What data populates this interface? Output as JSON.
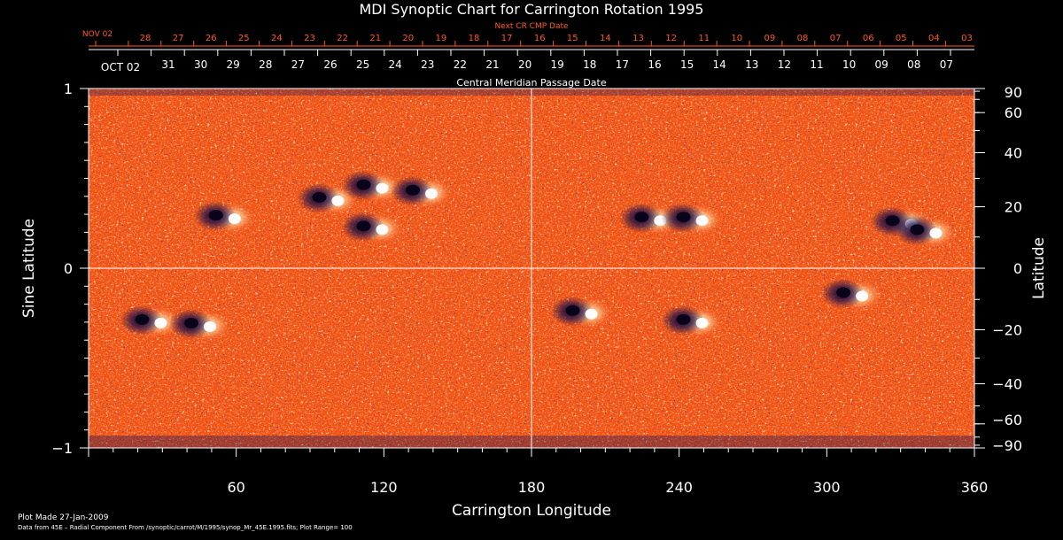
{
  "chart_data": {
    "type": "heatmap",
    "title": "MDI Synoptic Chart for Carrington Rotation 1995",
    "xlabel": "Carrington Longitude",
    "ylabel_left": "Sine Latitude",
    "ylabel_right": "Latitude",
    "xlim": [
      0,
      360
    ],
    "ylim": [
      -1,
      1
    ],
    "x_ticks": [
      60,
      120,
      180,
      240,
      300,
      360
    ],
    "y_left_ticks": [
      {
        "value": 1,
        "label": "1"
      },
      {
        "value": 0,
        "label": "0"
      },
      {
        "value": -1,
        "label": "−1"
      }
    ],
    "y_right_ticks": [
      {
        "lat": 90,
        "label": "90"
      },
      {
        "lat": 60,
        "label": "60"
      },
      {
        "lat": 40,
        "label": "40"
      },
      {
        "lat": 20,
        "label": "20"
      },
      {
        "lat": 0,
        "label": "0"
      },
      {
        "lat": -20,
        "label": "−20"
      },
      {
        "lat": -40,
        "label": "−40"
      },
      {
        "lat": -60,
        "label": "−60"
      },
      {
        "lat": -90,
        "label": "−90"
      }
    ],
    "top_axis_label": "Central Meridian Passage Date",
    "top_axis_start_label": "OCT 02",
    "top_axis_dates": [
      "31",
      "30",
      "29",
      "28",
      "27",
      "26",
      "25",
      "24",
      "23",
      "22",
      "21",
      "20",
      "19",
      "18",
      "17",
      "16",
      "15",
      "14",
      "13",
      "12",
      "11",
      "10",
      "09",
      "08",
      "07"
    ],
    "next_cr_label": "Next CR CMP Date",
    "next_cr_start_label": "NOV 02",
    "next_cr_dates": [
      "28",
      "27",
      "26",
      "25",
      "24",
      "23",
      "22",
      "21",
      "20",
      "19",
      "18",
      "17",
      "16",
      "15",
      "14",
      "13",
      "12",
      "11",
      "10",
      "09",
      "08",
      "07",
      "06",
      "05",
      "04",
      "03"
    ],
    "gridlines": {
      "longitude": [
        180
      ],
      "sine_latitude": [
        0
      ]
    },
    "active_regions": [
      {
        "lon": 25,
        "sinlat": -0.3
      },
      {
        "lon": 45,
        "sinlat": -0.32
      },
      {
        "lon": 55,
        "sinlat": 0.28
      },
      {
        "lon": 97,
        "sinlat": 0.38
      },
      {
        "lon": 115,
        "sinlat": 0.45
      },
      {
        "lon": 135,
        "sinlat": 0.42
      },
      {
        "lon": 115,
        "sinlat": 0.22
      },
      {
        "lon": 200,
        "sinlat": -0.25
      },
      {
        "lon": 228,
        "sinlat": 0.27
      },
      {
        "lon": 245,
        "sinlat": 0.27
      },
      {
        "lon": 245,
        "sinlat": -0.3
      },
      {
        "lon": 310,
        "sinlat": -0.15
      },
      {
        "lon": 330,
        "sinlat": 0.25
      },
      {
        "lon": 340,
        "sinlat": 0.2
      }
    ],
    "colors": {
      "background": "#000000",
      "field_base": "#ff5a1e",
      "positive": "#ffffff",
      "negative": "#140a3c",
      "grid": "#ffffff",
      "top_axis_red": "#ff5a1e"
    }
  },
  "footer": {
    "plot_made": "Plot Made 27-Jan-2009",
    "data_source": "Data from 45E – Radial Component From /synoptic/carrot/M/1995/synop_Mr_45E.1995.fits; Plot Range= 100"
  }
}
